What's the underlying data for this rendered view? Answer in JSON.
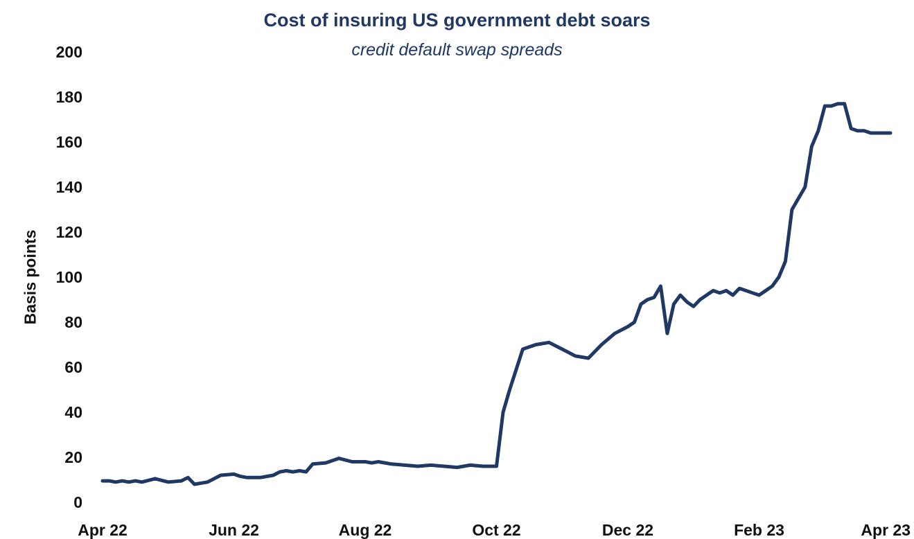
{
  "chart_data": {
    "type": "line",
    "title": "Cost of insuring US government debt soars",
    "subtitle": "credit default swap spreads",
    "xlabel": "",
    "ylabel": "Basis points",
    "ylim": [
      0,
      200
    ],
    "yticks": [
      "0",
      "20",
      "40",
      "60",
      "80",
      "100",
      "120",
      "140",
      "160",
      "180",
      "200"
    ],
    "xticks": [
      "Apr 22",
      "Jun 22",
      "Aug 22",
      "Oct 22",
      "Dec 22",
      "Feb 23",
      "Apr 23"
    ],
    "grid": false,
    "color": "#1f3864",
    "x": [
      0.0,
      0.05,
      0.1,
      0.15,
      0.2,
      0.25,
      0.3,
      0.4,
      0.5,
      0.6,
      0.65,
      0.7,
      0.8,
      0.9,
      1.0,
      1.05,
      1.1,
      1.2,
      1.3,
      1.35,
      1.4,
      1.45,
      1.5,
      1.55,
      1.6,
      1.7,
      1.8,
      1.9,
      2.0,
      2.05,
      2.1,
      2.15,
      2.2,
      2.3,
      2.4,
      2.5,
      2.6,
      2.7,
      2.8,
      2.9,
      3.0,
      3.05,
      3.1,
      3.2,
      3.3,
      3.4,
      3.5,
      3.6,
      3.7,
      3.8,
      3.9,
      4.0,
      4.05,
      4.1,
      4.15,
      4.2,
      4.25,
      4.3,
      4.35,
      4.4,
      4.45,
      4.5,
      4.55,
      4.6,
      4.65,
      4.7,
      4.75,
      4.8,
      4.85,
      4.9,
      4.95,
      5.0,
      5.05,
      5.1,
      5.15,
      5.2,
      5.25,
      5.3,
      5.35,
      5.4,
      5.45,
      5.5,
      5.55,
      5.6,
      5.65,
      5.7,
      5.75,
      5.8,
      5.85,
      5.9,
      5.95,
      6.0
    ],
    "values": [
      9.5,
      9.5,
      9.0,
      9.5,
      9.0,
      9.5,
      9.0,
      10.5,
      9.0,
      9.5,
      11.0,
      8.0,
      9.0,
      12.0,
      12.5,
      11.5,
      11.0,
      11.0,
      12.0,
      13.5,
      14.0,
      13.5,
      14.0,
      13.5,
      17.0,
      17.5,
      19.5,
      18.0,
      18.0,
      17.5,
      18.0,
      17.5,
      17.0,
      16.5,
      16.0,
      16.5,
      16.0,
      15.5,
      16.5,
      16.0,
      16.0,
      40.0,
      50.0,
      68.0,
      70.0,
      71.0,
      68.0,
      65.0,
      64.0,
      70.0,
      75.0,
      78.0,
      80.0,
      88.0,
      90.0,
      91.0,
      96.0,
      75.0,
      88.0,
      92.0,
      89.0,
      87.0,
      90.0,
      92.0,
      94.0,
      93.0,
      94.0,
      92.0,
      95.0,
      94.0,
      93.0,
      92.0,
      94.0,
      96.0,
      100.0,
      107.0,
      130.0,
      135.0,
      140.0,
      158.0,
      165.0,
      176.0,
      176.0,
      177.0,
      177.0,
      166.0,
      165.0,
      165.0,
      164.0,
      164.0,
      164.0,
      164.0
    ]
  }
}
